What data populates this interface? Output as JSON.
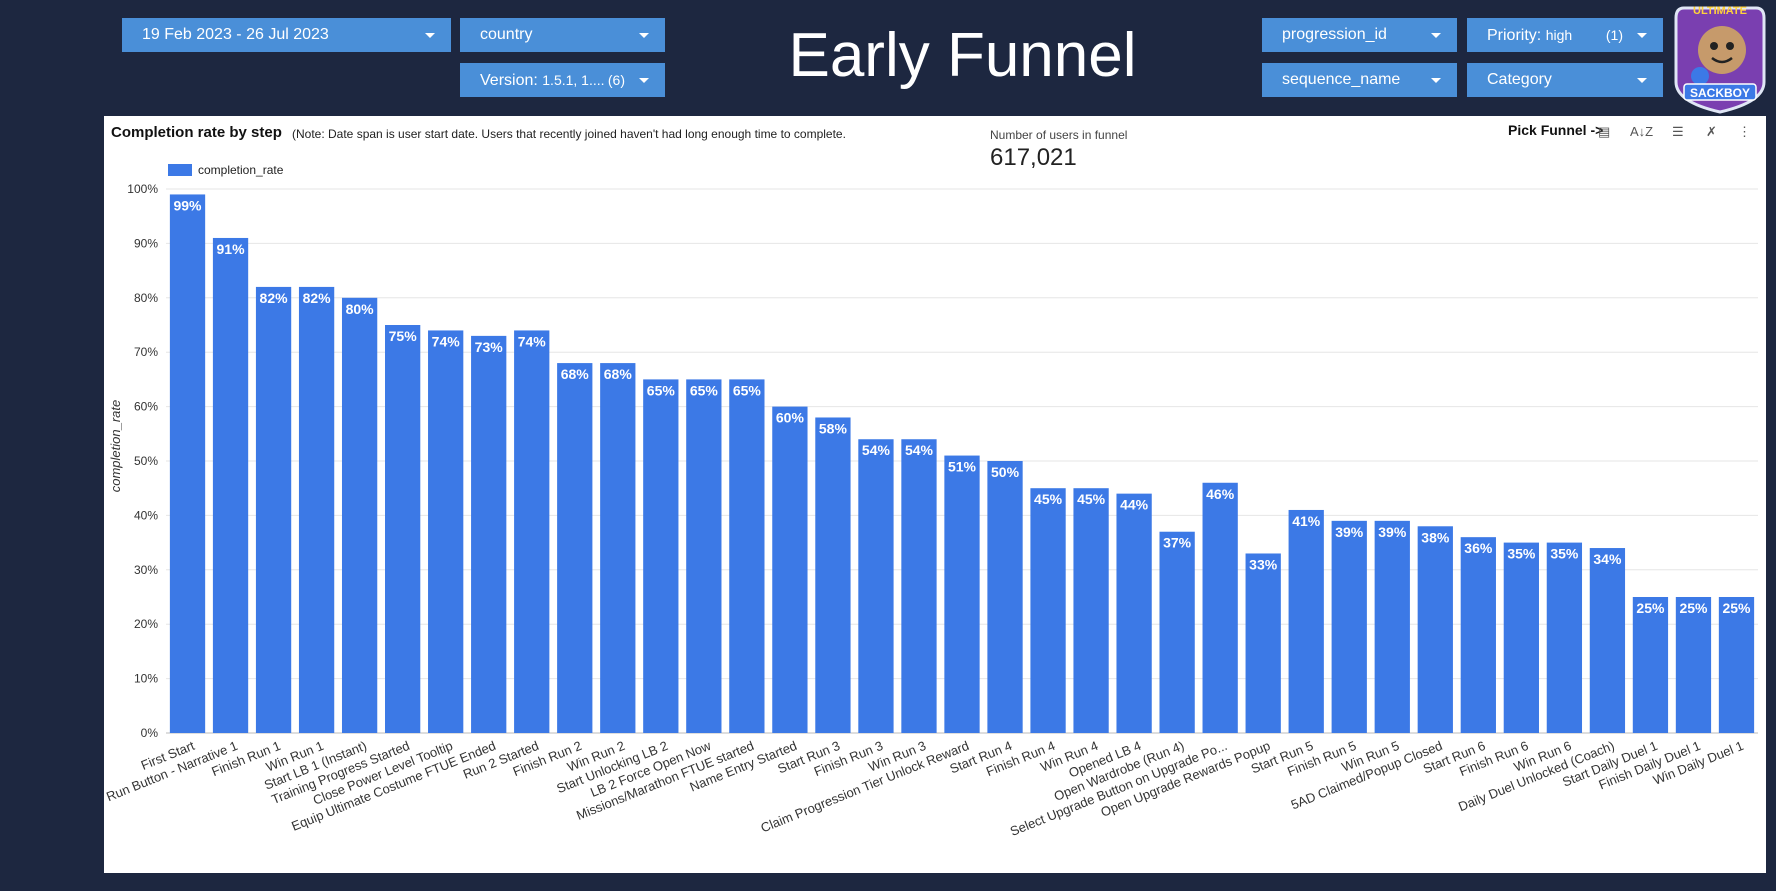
{
  "header": {
    "title": "Early Funnel",
    "date_range": "19 Feb 2023 - 26 Jul 2023",
    "country_label": "country",
    "version_label": "Version:",
    "version_value": "1.5.1, 1....",
    "version_count": "(6)",
    "progression_label": "progression_id",
    "sequence_label": "sequence_name",
    "priority_label": "Priority:",
    "priority_value": "high",
    "priority_count": "(1)",
    "category_label": "Category",
    "logo_text_top": "ULTIMATE",
    "logo_text_bottom": "SACKBOY"
  },
  "panel": {
    "title": "Completion rate by step",
    "note": "(Note: Date span is user start date. Users that recently joined haven't had long enough time to complete.",
    "users_label": "Number of users in funnel",
    "users_value": "617,021",
    "pick_funnel": "Pick Funnel ->"
  },
  "colors": {
    "background": "#1d2740",
    "control": "#4a8fd8",
    "bar": "#3c79e6",
    "grid": "#e6e6e6"
  },
  "chart_data": {
    "type": "bar",
    "title": "Completion rate by step",
    "ylabel": "completion_rate",
    "xlabel": "",
    "ylim": [
      0,
      100
    ],
    "yticks": [
      "0%",
      "10%",
      "20%",
      "30%",
      "40%",
      "50%",
      "60%",
      "70%",
      "80%",
      "90%",
      "100%"
    ],
    "grid": true,
    "legend": "top-left",
    "series": [
      {
        "name": "completion_rate",
        "values": [
          99,
          91,
          82,
          82,
          80,
          75,
          74,
          73,
          74,
          68,
          68,
          65,
          65,
          65,
          60,
          58,
          54,
          54,
          51,
          50,
          45,
          45,
          44,
          37,
          46,
          33,
          41,
          39,
          39,
          38,
          36,
          35,
          35,
          34,
          25,
          25,
          25
        ],
        "labels": [
          "99%",
          "91%",
          "82%",
          "82%",
          "80%",
          "75%",
          "74%",
          "73%",
          "74%",
          "68%",
          "68%",
          "65%",
          "65%",
          "65%",
          "60%",
          "58%",
          "54%",
          "54%",
          "51%",
          "50%",
          "45%",
          "45%",
          "44%",
          "37%",
          "46%",
          "33%",
          "41%",
          "39%",
          "39%",
          "38%",
          "36%",
          "35%",
          "35%",
          "34%",
          "25%",
          "25%",
          "25%"
        ]
      }
    ],
    "categories": [
      "First Start",
      "Run Button - Narrative 1",
      "Finish Run 1",
      "Win Run 1",
      "Start LB 1 (Instant)",
      "Training Progress Started",
      "Close Power Level Tooltip",
      "Equip Ultimate Costume FTUE Ended",
      "Run 2 Started",
      "Finish Run 2",
      "Win Run 2",
      "Start Unlocking LB 2",
      "LB 2 Force Open Now",
      "Missions/Marathon FTUE started",
      "Name Entry Started",
      "Start Run 3",
      "Finish Run 3",
      "Win Run 3",
      "Claim Progression Tier Unlock Reward",
      "Start Run 4",
      "Finish Run 4",
      "Win Run 4",
      "Opened LB 4",
      "Open Wardrobe (Run 4)",
      "Select Upgrade Button on Upgrade Po...",
      "Open Upgrade Rewards Popup",
      "Start Run 5",
      "Finish Run 5",
      "Win Run 5",
      "5AD Claimed/Popup Closed",
      "Start Run 6",
      "Finish Run 6",
      "Win Run 6",
      "Daily Duel Unlocked (Coach)",
      "Start Daily Duel 1",
      "Finish Daily Duel 1",
      "Win Daily Duel 1"
    ]
  }
}
